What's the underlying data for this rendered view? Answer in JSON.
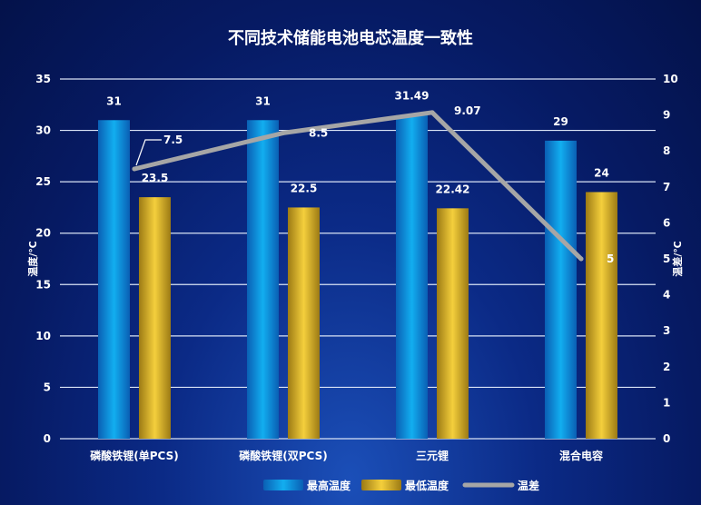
{
  "chart_data": {
    "type": "bar",
    "title": "不同技术储能电池电芯温度一致性",
    "categories": [
      "磷酸铁锂(单PCS)",
      "磷酸铁锂(双PCS)",
      "三元锂",
      "混合电容"
    ],
    "series": [
      {
        "name": "最高温度",
        "type": "bar",
        "axis": "left",
        "values": [
          31,
          31,
          31.49,
          29
        ],
        "labels": [
          "31",
          "31",
          "31.49",
          "29"
        ],
        "color": "#0a9ae6"
      },
      {
        "name": "最低温度",
        "type": "bar",
        "axis": "left",
        "values": [
          23.5,
          22.5,
          22.42,
          24
        ],
        "labels": [
          "23.5",
          "22.5",
          "22.42",
          "24"
        ],
        "color": "#e8b526"
      },
      {
        "name": "温差",
        "type": "line",
        "axis": "right",
        "values": [
          7.5,
          8.5,
          9.07,
          5
        ],
        "labels": [
          "7.5",
          "8.5",
          "9.07",
          "5"
        ],
        "color": "#a6a6a6"
      }
    ],
    "ylabel": "温度/℃",
    "ylabel_right": "温差/℃",
    "ylim": [
      0,
      35
    ],
    "ylim_right": [
      0,
      10
    ],
    "yticks": [
      "0",
      "5",
      "10",
      "15",
      "20",
      "25",
      "30",
      "35"
    ],
    "yticks_right": [
      "0",
      "1",
      "2",
      "3",
      "4",
      "5",
      "6",
      "7",
      "8",
      "9",
      "10"
    ],
    "grid": true,
    "legend_position": "bottom"
  }
}
